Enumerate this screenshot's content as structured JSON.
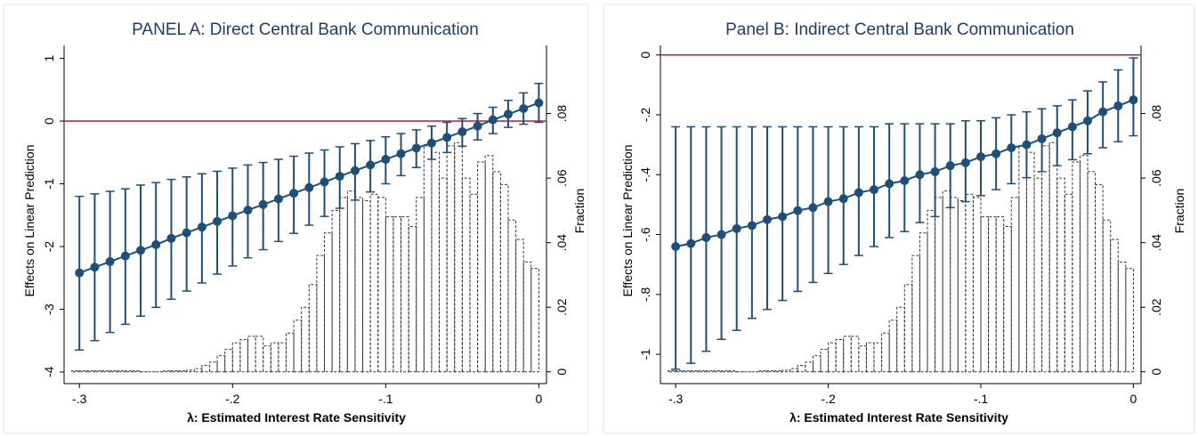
{
  "colors": {
    "series": "#1f4e79",
    "zero_line": "#c0143c",
    "title": "#1f3b66",
    "hist": "#333333"
  },
  "chart_data": [
    {
      "type": "line",
      "title": "PANEL A: Direct Central Bank Communication",
      "xlabel": "λ:  Estimated Interest Rate Sensitivity",
      "ylabel": "Effects on Linear Prediction",
      "ylabel2": "Fraction",
      "xlim": [
        -0.31,
        0.005
      ],
      "ylim": [
        -4.1,
        1.15
      ],
      "y2lim": [
        -0.002,
        0.1
      ],
      "xticks": [
        -0.3,
        -0.2,
        -0.1,
        0
      ],
      "xtick_labels": [
        "-.3",
        "-.2",
        "-.1",
        "0"
      ],
      "yticks": [
        1,
        0,
        -1,
        -2,
        -3,
        -4
      ],
      "ytick_labels": [
        "1",
        "0",
        "-1",
        "-2",
        "-3",
        "-4"
      ],
      "y2ticks": [
        0,
        0.02,
        0.04,
        0.06,
        0.08
      ],
      "y2tick_labels": [
        "0",
        ".02",
        ".04",
        ".06",
        ".08"
      ],
      "reference_line_y": 0,
      "grid": false,
      "x": [
        -0.3,
        -0.29,
        -0.28,
        -0.27,
        -0.26,
        -0.25,
        -0.24,
        -0.23,
        -0.22,
        -0.21,
        -0.2,
        -0.19,
        -0.18,
        -0.17,
        -0.16,
        -0.15,
        -0.14,
        -0.13,
        -0.12,
        -0.11,
        -0.1,
        -0.09,
        -0.08,
        -0.07,
        -0.06,
        -0.05,
        -0.04,
        -0.03,
        -0.02,
        -0.01,
        0
      ],
      "y": [
        -2.42,
        -2.33,
        -2.24,
        -2.15,
        -2.06,
        -1.97,
        -1.87,
        -1.78,
        -1.69,
        -1.6,
        -1.51,
        -1.42,
        -1.33,
        -1.24,
        -1.15,
        -1.06,
        -0.97,
        -0.88,
        -0.79,
        -0.7,
        -0.61,
        -0.52,
        -0.43,
        -0.35,
        -0.26,
        -0.17,
        -0.08,
        0.02,
        0.11,
        0.2,
        0.29
      ],
      "ci_low": [
        -3.65,
        -3.5,
        -3.37,
        -3.24,
        -3.11,
        -2.97,
        -2.84,
        -2.71,
        -2.58,
        -2.44,
        -2.31,
        -2.18,
        -2.05,
        -1.92,
        -1.79,
        -1.66,
        -1.52,
        -1.39,
        -1.26,
        -1.13,
        -1.0,
        -0.87,
        -0.74,
        -0.61,
        -0.5,
        -0.4,
        -0.3,
        -0.2,
        -0.1,
        -0.05,
        -0.02
      ],
      "ci_high": [
        -1.2,
        -1.16,
        -1.12,
        -1.08,
        -1.02,
        -0.98,
        -0.93,
        -0.89,
        -0.84,
        -0.8,
        -0.75,
        -0.7,
        -0.66,
        -0.61,
        -0.56,
        -0.51,
        -0.46,
        -0.41,
        -0.36,
        -0.31,
        -0.25,
        -0.2,
        -0.14,
        -0.08,
        -0.02,
        0.04,
        0.12,
        0.22,
        0.33,
        0.45,
        0.6
      ],
      "histogram": {
        "bin_width": 0.005,
        "bin_starts": [
          -0.305,
          -0.3,
          -0.295,
          -0.29,
          -0.285,
          -0.28,
          -0.275,
          -0.27,
          -0.265,
          -0.26,
          -0.255,
          -0.25,
          -0.245,
          -0.24,
          -0.235,
          -0.23,
          -0.225,
          -0.22,
          -0.215,
          -0.21,
          -0.205,
          -0.2,
          -0.195,
          -0.19,
          -0.185,
          -0.18,
          -0.175,
          -0.17,
          -0.165,
          -0.16,
          -0.155,
          -0.15,
          -0.145,
          -0.14,
          -0.135,
          -0.13,
          -0.125,
          -0.12,
          -0.115,
          -0.11,
          -0.105,
          -0.1,
          -0.095,
          -0.09,
          -0.085,
          -0.08,
          -0.075,
          -0.07,
          -0.065,
          -0.06,
          -0.055,
          -0.05,
          -0.045,
          -0.04,
          -0.035,
          -0.03,
          -0.025,
          -0.02,
          -0.015,
          -0.01,
          -0.005
        ],
        "fractions": [
          0.0003,
          0.0003,
          0.0003,
          0.0003,
          0.0003,
          0.0003,
          0.0003,
          0.0003,
          0.0003,
          0,
          0,
          0,
          0.0003,
          0.0003,
          0.0003,
          0.0005,
          0.001,
          0.002,
          0.003,
          0.005,
          0.007,
          0.009,
          0.01,
          0.011,
          0.011,
          0.008,
          0.009,
          0.009,
          0.012,
          0.016,
          0.02,
          0.027,
          0.036,
          0.043,
          0.05,
          0.054,
          0.056,
          0.054,
          0.053,
          0.055,
          0.054,
          0.048,
          0.048,
          0.048,
          0.045,
          0.054,
          0.07,
          0.068,
          0.06,
          0.07,
          0.071,
          0.06,
          0.055,
          0.065,
          0.067,
          0.062,
          0.058,
          0.047,
          0.041,
          0.034,
          0.032
        ]
      }
    },
    {
      "type": "line",
      "title": "Panel B: Indirect Central Bank Communication",
      "xlabel": "λ:  Estimated Interest Rate Sensitivity",
      "ylabel": "Effects on Linear Prediction",
      "ylabel2": "Fraction",
      "xlim": [
        -0.31,
        0.005
      ],
      "ylim": [
        -1.08,
        0.02
      ],
      "y2lim": [
        -0.002,
        0.1
      ],
      "xticks": [
        -0.3,
        -0.2,
        -0.1,
        0
      ],
      "xtick_labels": [
        "-.3",
        "-.2",
        "-.1",
        "0"
      ],
      "yticks": [
        0,
        -0.2,
        -0.4,
        -0.6,
        -0.8,
        -1
      ],
      "ytick_labels": [
        "0",
        "-.2",
        "-.4",
        "-.6",
        "-.8",
        "-1"
      ],
      "y2ticks": [
        0,
        0.02,
        0.04,
        0.06,
        0.08
      ],
      "y2tick_labels": [
        "0",
        ".02",
        ".04",
        ".06",
        ".08"
      ],
      "reference_line_y": 0,
      "grid": false,
      "x": [
        -0.3,
        -0.29,
        -0.28,
        -0.27,
        -0.26,
        -0.25,
        -0.24,
        -0.23,
        -0.22,
        -0.21,
        -0.2,
        -0.19,
        -0.18,
        -0.17,
        -0.16,
        -0.15,
        -0.14,
        -0.13,
        -0.12,
        -0.11,
        -0.1,
        -0.09,
        -0.08,
        -0.07,
        -0.06,
        -0.05,
        -0.04,
        -0.03,
        -0.02,
        -0.01,
        0
      ],
      "y": [
        -0.64,
        -0.63,
        -0.61,
        -0.6,
        -0.58,
        -0.57,
        -0.55,
        -0.54,
        -0.52,
        -0.51,
        -0.49,
        -0.48,
        -0.46,
        -0.45,
        -0.43,
        -0.42,
        -0.4,
        -0.39,
        -0.37,
        -0.36,
        -0.34,
        -0.33,
        -0.31,
        -0.3,
        -0.28,
        -0.26,
        -0.24,
        -0.22,
        -0.19,
        -0.17,
        -0.15
      ],
      "ci_low": [
        -1.05,
        -1.03,
        -0.99,
        -0.95,
        -0.92,
        -0.88,
        -0.85,
        -0.82,
        -0.79,
        -0.76,
        -0.73,
        -0.7,
        -0.67,
        -0.64,
        -0.61,
        -0.59,
        -0.56,
        -0.54,
        -0.51,
        -0.49,
        -0.47,
        -0.45,
        -0.43,
        -0.41,
        -0.39,
        -0.37,
        -0.35,
        -0.33,
        -0.31,
        -0.29,
        -0.27
      ],
      "ci_high": [
        -0.24,
        -0.24,
        -0.24,
        -0.24,
        -0.24,
        -0.24,
        -0.24,
        -0.24,
        -0.24,
        -0.24,
        -0.24,
        -0.24,
        -0.24,
        -0.24,
        -0.23,
        -0.23,
        -0.23,
        -0.23,
        -0.23,
        -0.22,
        -0.22,
        -0.21,
        -0.2,
        -0.19,
        -0.18,
        -0.17,
        -0.15,
        -0.12,
        -0.09,
        -0.05,
        -0.01
      ],
      "histogram": {
        "bin_width": 0.005,
        "bin_starts": [
          -0.305,
          -0.3,
          -0.295,
          -0.29,
          -0.285,
          -0.28,
          -0.275,
          -0.27,
          -0.265,
          -0.26,
          -0.255,
          -0.25,
          -0.245,
          -0.24,
          -0.235,
          -0.23,
          -0.225,
          -0.22,
          -0.215,
          -0.21,
          -0.205,
          -0.2,
          -0.195,
          -0.19,
          -0.185,
          -0.18,
          -0.175,
          -0.17,
          -0.165,
          -0.16,
          -0.155,
          -0.15,
          -0.145,
          -0.14,
          -0.135,
          -0.13,
          -0.125,
          -0.12,
          -0.115,
          -0.11,
          -0.105,
          -0.1,
          -0.095,
          -0.09,
          -0.085,
          -0.08,
          -0.075,
          -0.07,
          -0.065,
          -0.06,
          -0.055,
          -0.05,
          -0.045,
          -0.04,
          -0.035,
          -0.03,
          -0.025,
          -0.02,
          -0.015,
          -0.01,
          -0.005
        ],
        "fractions": [
          0.0003,
          0.0003,
          0.0003,
          0.0003,
          0.0003,
          0.0003,
          0.0003,
          0.0003,
          0.0003,
          0,
          0,
          0,
          0.0003,
          0.0003,
          0.0003,
          0.0005,
          0.001,
          0.002,
          0.003,
          0.005,
          0.007,
          0.009,
          0.01,
          0.011,
          0.011,
          0.008,
          0.009,
          0.009,
          0.012,
          0.016,
          0.02,
          0.027,
          0.036,
          0.043,
          0.05,
          0.054,
          0.056,
          0.054,
          0.053,
          0.055,
          0.054,
          0.048,
          0.048,
          0.048,
          0.045,
          0.054,
          0.07,
          0.068,
          0.06,
          0.07,
          0.071,
          0.06,
          0.055,
          0.065,
          0.067,
          0.062,
          0.058,
          0.047,
          0.041,
          0.034,
          0.032
        ]
      }
    }
  ]
}
